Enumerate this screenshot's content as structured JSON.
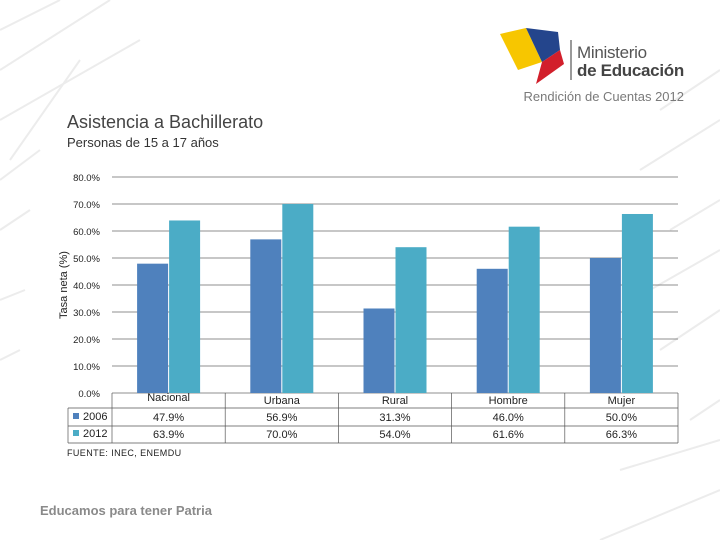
{
  "header": {
    "logo_line1": "Ministerio",
    "logo_line2": "de Educación",
    "tagline": "Rendición de Cuentas 2012"
  },
  "slide": {
    "title": "Asistencia a Bachillerato",
    "subtitle": "Personas de 15 a 17 años",
    "source": "FUENTE: INEC, ENEMDU",
    "footer": "Educamos para tener Patria"
  },
  "chart_data": {
    "type": "bar",
    "categories": [
      "Nacional",
      "Urbana",
      "Rural",
      "Hombre",
      "Mujer"
    ],
    "series": [
      {
        "name": "2006",
        "values": [
          47.9,
          56.9,
          31.3,
          46.0,
          50.0
        ],
        "labels": [
          "47.9%",
          "56.9%",
          "31.3%",
          "46.0%",
          "50.0%"
        ],
        "color": "#4f81bd"
      },
      {
        "name": "2012",
        "values": [
          63.9,
          70.0,
          54.0,
          61.6,
          66.3
        ],
        "labels": [
          "63.9%",
          "70.0%",
          "54.0%",
          "61.6%",
          "66.3%"
        ],
        "color": "#4bacc6"
      }
    ],
    "ylabel": "Tasa neta (%)",
    "ylim": [
      0,
      80
    ],
    "yticks": [
      "0.0%",
      "10.0%",
      "20.0%",
      "30.0%",
      "40.0%",
      "50.0%",
      "60.0%",
      "70.0%",
      "80.0%"
    ],
    "grid": true,
    "legend": "data-table"
  }
}
